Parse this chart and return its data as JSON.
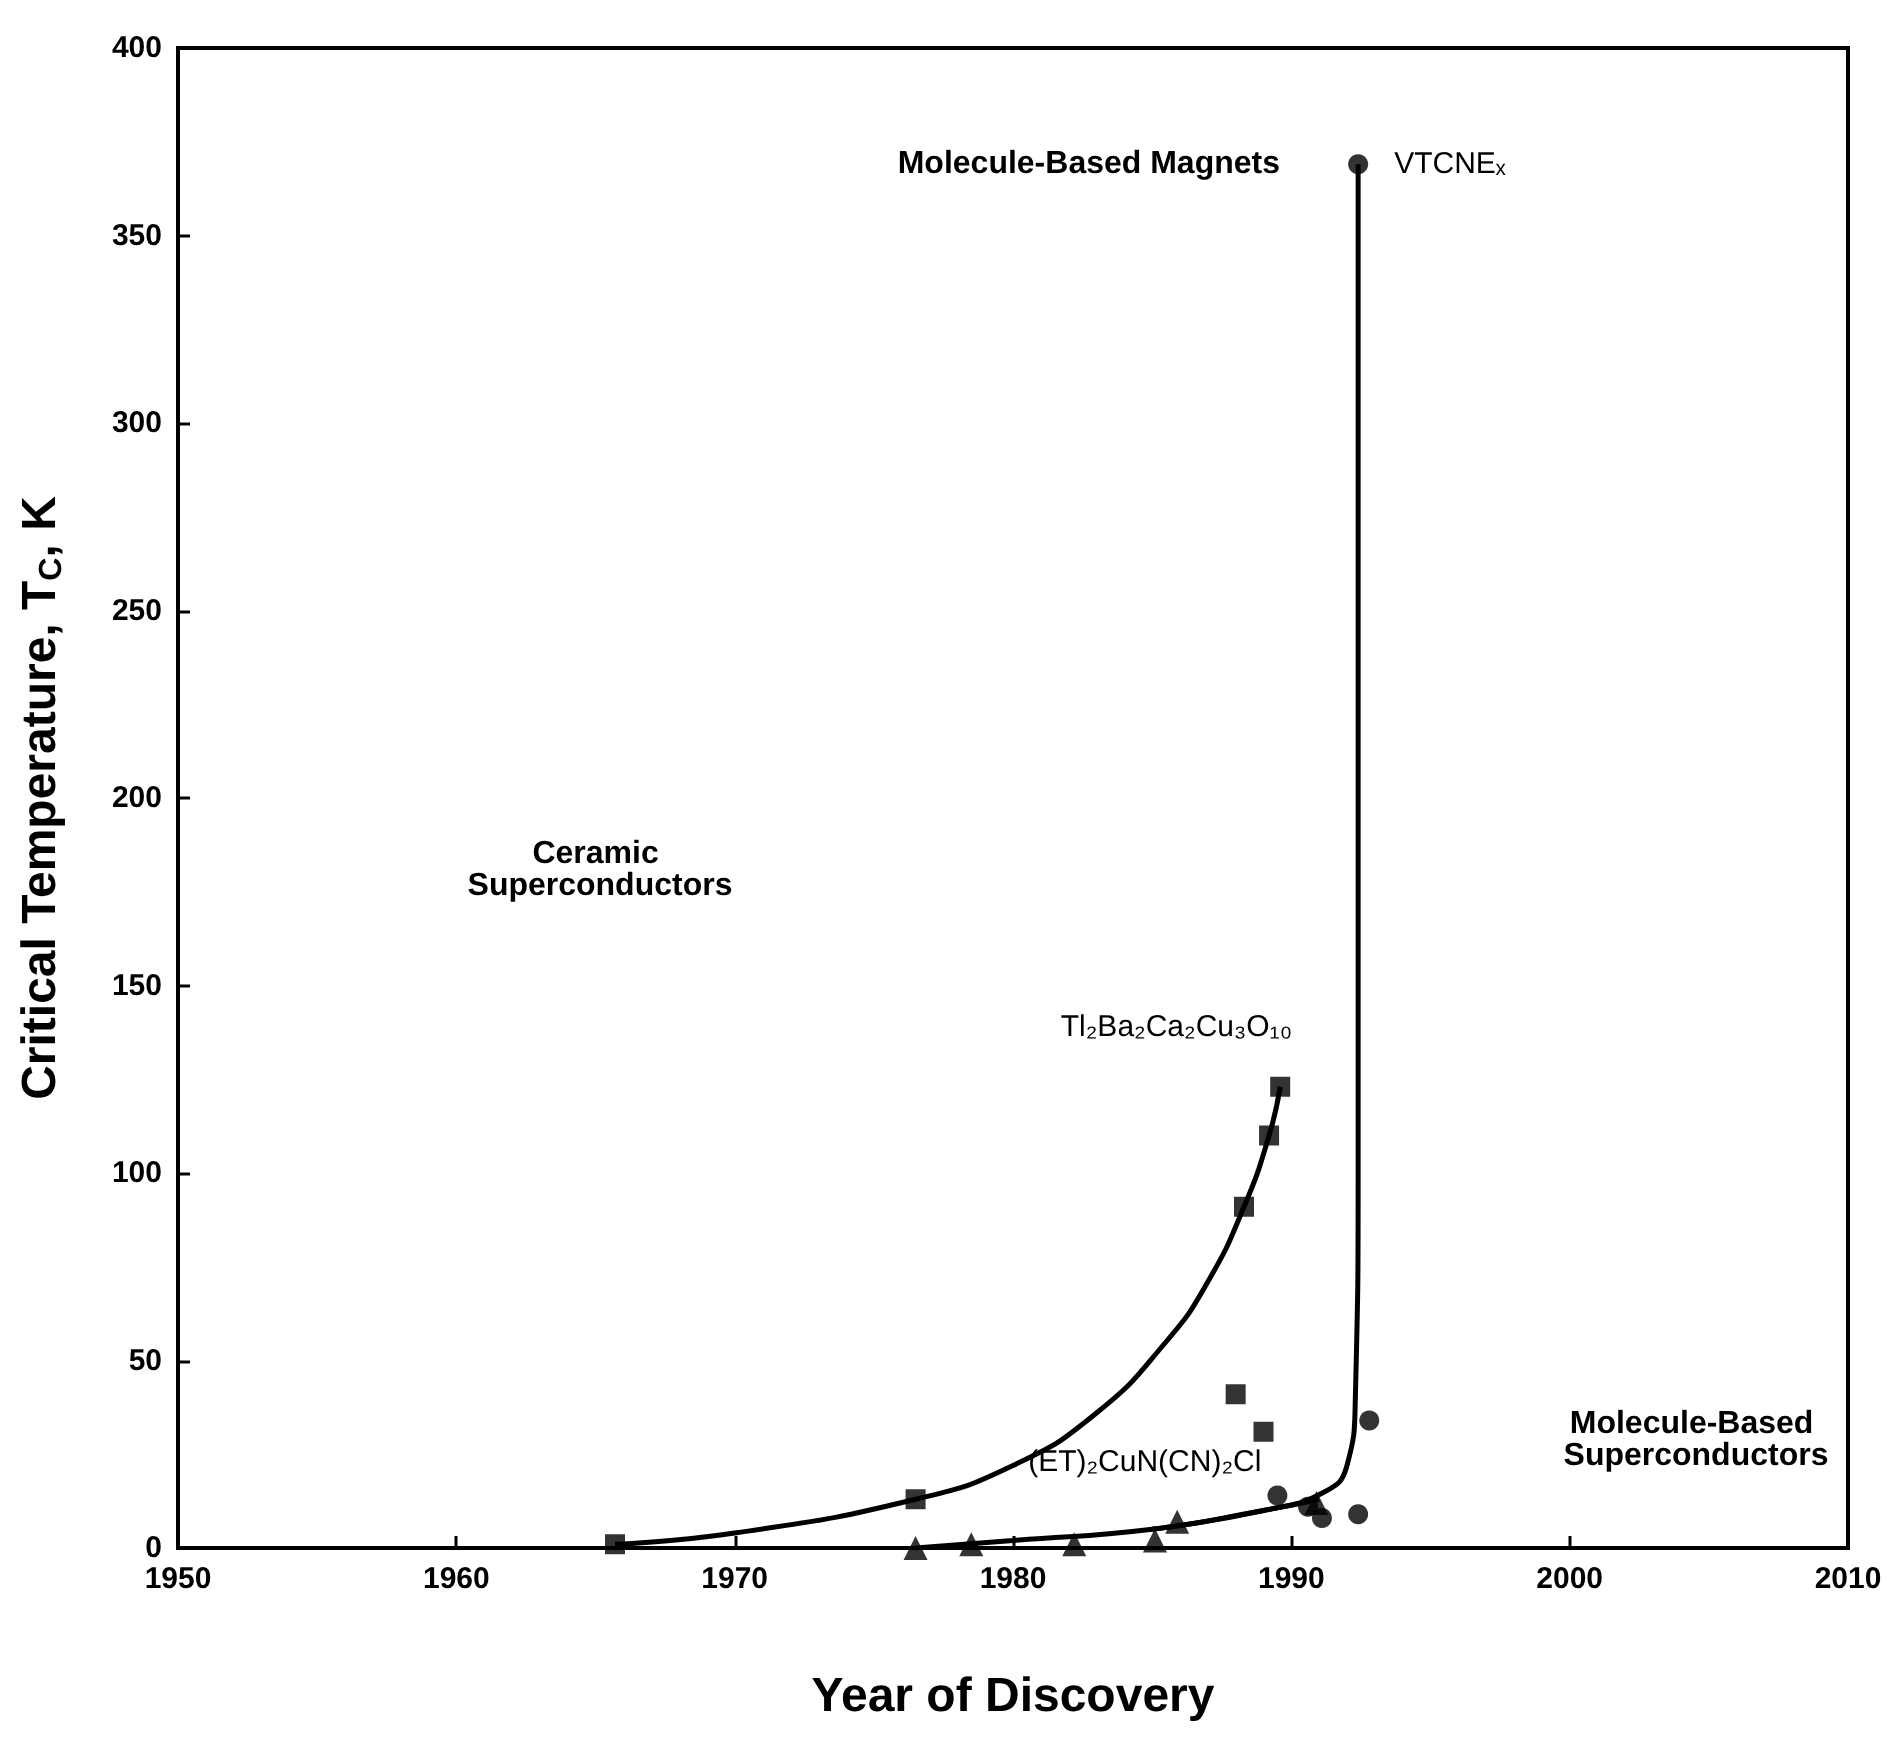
{
  "chart_data": {
    "type": "scatter",
    "xlabel": "Year of Discovery",
    "ylabel": "Critical Temperature, T$_{C}$, K",
    "xlim": [
      1950,
      2010
    ],
    "xticks": [
      1950,
      1960,
      1970,
      1980,
      1990,
      2000,
      2010
    ],
    "ylim": [
      0,
      400
    ],
    "yticks": [
      0,
      50,
      100,
      150,
      200,
      250,
      300,
      350,
      400
    ],
    "grid": false,
    "series": [
      {
        "marker": "square",
        "color": "#000000",
        "x": [
          1965.7,
          1976.5,
          1988.0,
          1989.0,
          1988.3,
          1989.2,
          1989.6
        ],
        "values": [
          1,
          13,
          41,
          31,
          91,
          110,
          123
        ]
      },
      {
        "marker": "circle",
        "color": "#000000",
        "x": [
          1989.5,
          1990.6,
          1991.1,
          1992.4,
          1992.8,
          1992.4
        ],
        "values": [
          14,
          11,
          8,
          9,
          34,
          369
        ]
      },
      {
        "marker": "triangle",
        "color": "#000000",
        "x": [
          1976.5,
          1978.5,
          1982.2,
          1985.1,
          1985.9,
          1990.9
        ],
        "values": [
          0,
          1,
          1,
          2,
          7,
          12
        ]
      },
      {
        "type": "line",
        "marker": "none",
        "color": "#000000",
        "x": [
          1965.7,
          1970,
          1976.5,
          1980,
          1983,
          1985.5,
          1987,
          1988.3,
          1989.2,
          1989.6
        ],
        "values": [
          1,
          4,
          13,
          22,
          36,
          55,
          71,
          91,
          110,
          123
        ]
      },
      {
        "type": "line",
        "marker": "none",
        "color": "#000000",
        "x": [
          1976.5,
          1980,
          1985,
          1989,
          1991
        ],
        "values": [
          0,
          2,
          5,
          10,
          13
        ]
      },
      {
        "type": "line",
        "marker": "none",
        "color": "#000000",
        "x": [
          1985,
          1989,
          1991.2,
          1992,
          1992.3,
          1992.4,
          1992.4
        ],
        "values": [
          5,
          10,
          15,
          22,
          40,
          100,
          369
        ]
      }
    ],
    "annotations": [
      "Ceramic Superconductors",
      "Molecule-Based Magnets",
      "Molecule-Based Superconductors",
      {
        "text": "Tl₂Ba₂Ca₂Cu₃O₁₀",
        "x": 1989.6,
        "y": 123
      },
      {
        "text": "(ET)₂CuN(CN)₂Cl",
        "x": 1989.5,
        "y": 14
      },
      {
        "text": "VTCNEₓ",
        "x": 1992.4,
        "y": 369
      }
    ]
  }
}
